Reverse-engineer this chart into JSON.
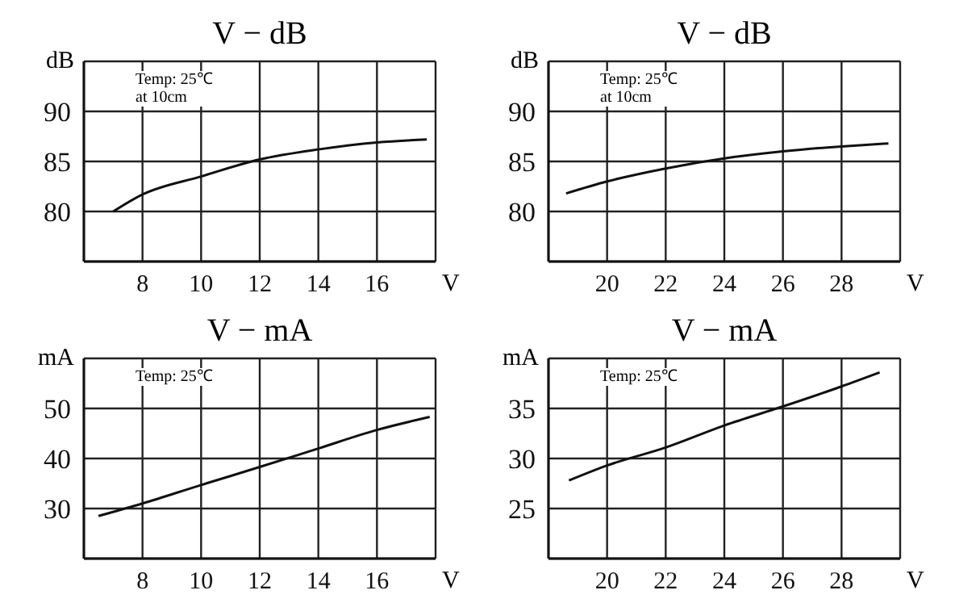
{
  "chart_data": [
    {
      "type": "line",
      "title": "V − dB",
      "xlabel": "V",
      "ylabel": "dB",
      "annotations": [
        "Temp: 25℃",
        "at 10cm"
      ],
      "xlim": [
        6,
        18
      ],
      "xticks": [
        8,
        10,
        12,
        14,
        16
      ],
      "ylim": [
        75,
        95
      ],
      "yticks": [
        80,
        85,
        90
      ],
      "grid": true,
      "series": [
        {
          "color": "#111111",
          "x": [
            7,
            8,
            10,
            12,
            14,
            16,
            17.7
          ],
          "values": [
            80,
            81.7,
            83.5,
            85.2,
            86.2,
            86.9,
            87.2
          ]
        }
      ]
    },
    {
      "type": "line",
      "title": "V − dB",
      "xlabel": "V",
      "ylabel": "dB",
      "annotations": [
        "Temp: 25℃",
        "at 10cm"
      ],
      "xlim": [
        18,
        30
      ],
      "xticks": [
        20,
        22,
        24,
        26,
        28
      ],
      "ylim": [
        75,
        95
      ],
      "yticks": [
        80,
        85,
        90
      ],
      "grid": true,
      "series": [
        {
          "color": "#111111",
          "x": [
            18.6,
            20,
            22,
            24,
            26,
            28,
            29.6
          ],
          "values": [
            81.8,
            83,
            84.3,
            85.3,
            86,
            86.5,
            86.8
          ]
        }
      ]
    },
    {
      "type": "line",
      "title": "V − mA",
      "xlabel": "V",
      "ylabel": "mA",
      "annotations": [
        "Temp: 25℃"
      ],
      "xlim": [
        6,
        18
      ],
      "xticks": [
        8,
        10,
        12,
        14,
        16
      ],
      "ylim": [
        20,
        60
      ],
      "yticks": [
        30,
        40,
        50
      ],
      "grid": true,
      "series": [
        {
          "color": "#111111",
          "x": [
            6.5,
            8,
            10,
            12,
            14,
            16,
            17.8
          ],
          "values": [
            28.5,
            31,
            34.7,
            38.3,
            42,
            45.7,
            48.3
          ]
        }
      ]
    },
    {
      "type": "line",
      "title": "V − mA",
      "xlabel": "V",
      "ylabel": "mA",
      "annotations": [
        "Temp: 25℃"
      ],
      "xlim": [
        18,
        30
      ],
      "xticks": [
        20,
        22,
        24,
        26,
        28
      ],
      "ylim": [
        20,
        40
      ],
      "yticks": [
        25,
        30,
        35
      ],
      "grid": true,
      "series": [
        {
          "color": "#111111",
          "x": [
            18.7,
            20,
            22,
            24,
            26,
            28,
            29.3
          ],
          "values": [
            27.8,
            29.3,
            31.1,
            33.3,
            35.2,
            37.2,
            38.6
          ]
        }
      ]
    }
  ]
}
